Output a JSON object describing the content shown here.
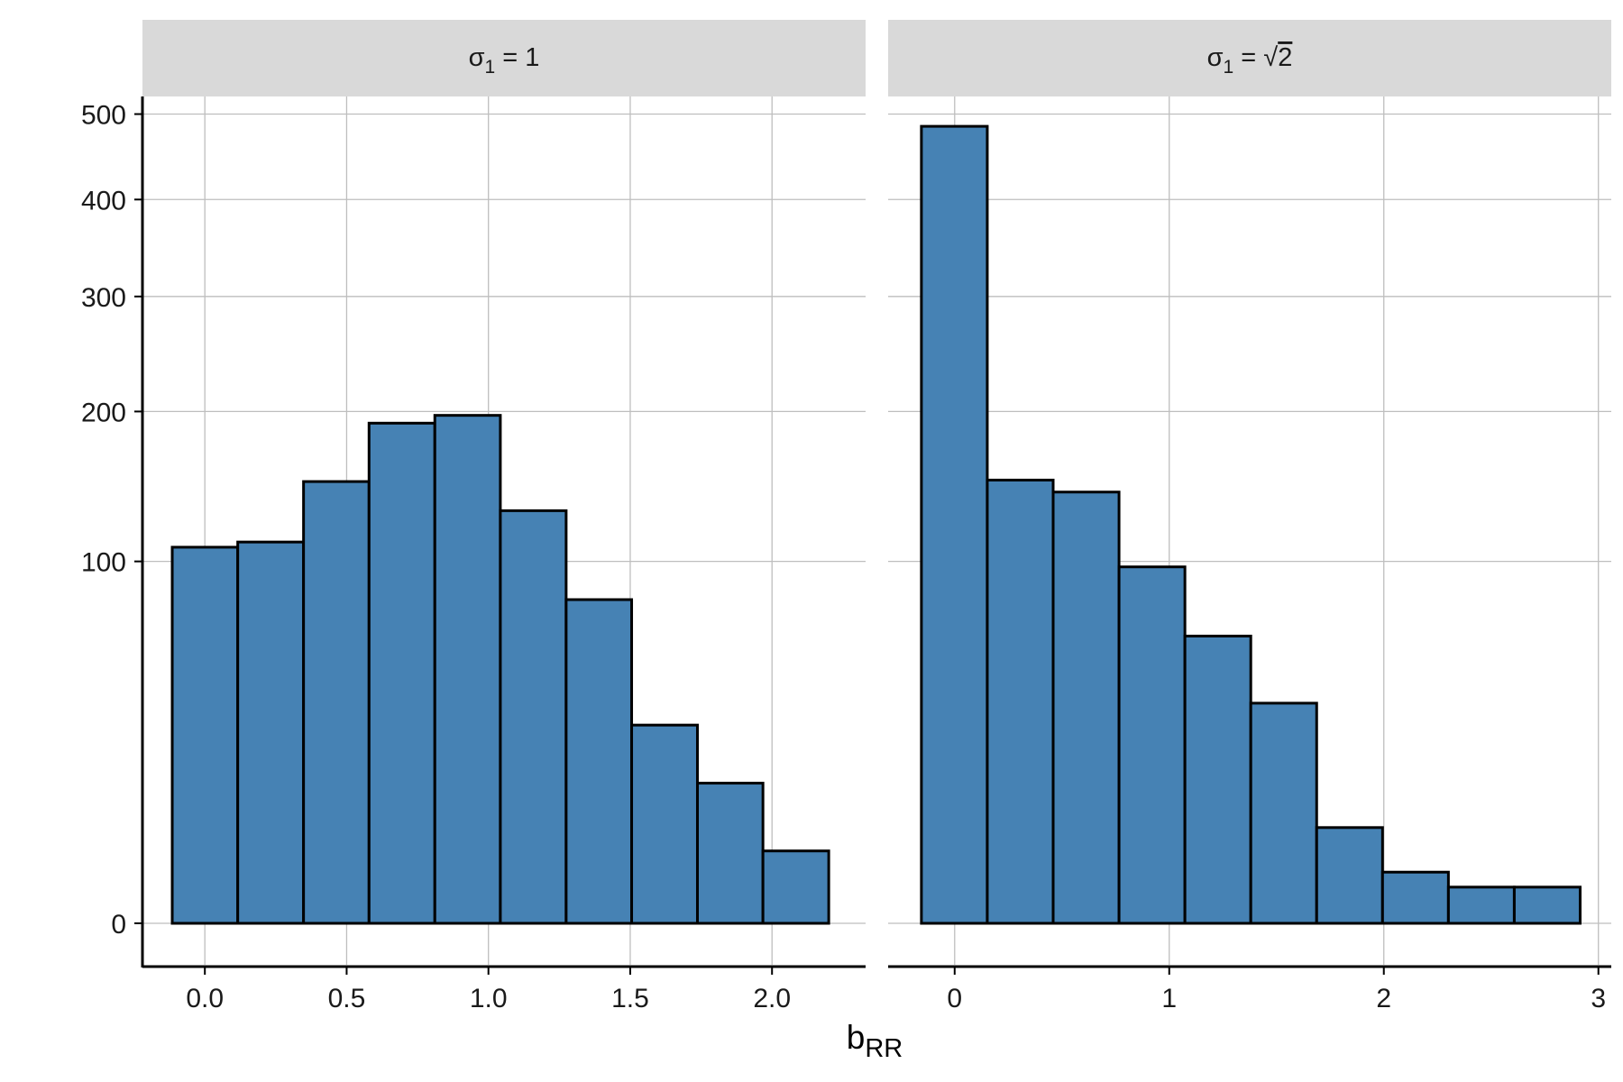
{
  "chart_data": {
    "type": "bar",
    "xlabel": {
      "base": "b",
      "sub": "RR"
    },
    "y_scale": "sqrt",
    "grid": true,
    "panels": [
      {
        "strip": {
          "base": "σ",
          "sub": "1",
          "eq": " = ",
          "value": "1",
          "radical": false
        },
        "xlim": [
          -0.22,
          2.33
        ],
        "ylim": [
          0,
          522
        ],
        "x_ticks": [
          0.0,
          0.5,
          1.0,
          1.5,
          2.0
        ],
        "x_tick_labels": [
          "0.0",
          "0.5",
          "1.0",
          "1.5",
          "2.0"
        ],
        "y_ticks": [
          0,
          100,
          200,
          300,
          400,
          500
        ],
        "y_tick_labels": [
          "0",
          "100",
          "200",
          "300",
          "400",
          "500"
        ],
        "bin_edges": [
          -0.115,
          0.116,
          0.348,
          0.579,
          0.811,
          1.042,
          1.274,
          1.505,
          1.737,
          1.968,
          2.2
        ],
        "counts": [
          108,
          111,
          149,
          191,
          197,
          130,
          80,
          30,
          15,
          4
        ]
      },
      {
        "strip": {
          "base": "σ",
          "sub": "1",
          "eq": " = ",
          "value": "2",
          "radical": true
        },
        "xlim": [
          -0.31,
          3.06
        ],
        "ylim": [
          0,
          522
        ],
        "x_ticks": [
          0,
          1,
          2,
          3
        ],
        "x_tick_labels": [
          "0",
          "1",
          "2",
          "3"
        ],
        "y_ticks": [
          0,
          100,
          200,
          300,
          400,
          500
        ],
        "y_tick_labels": [
          "0",
          "100",
          "200",
          "300",
          "400",
          "500"
        ],
        "bin_edges": [
          -0.155,
          0.152,
          0.459,
          0.766,
          1.073,
          1.38,
          1.687,
          1.994,
          2.301,
          2.608,
          2.915
        ],
        "counts": [
          485,
          150,
          142,
          97,
          63,
          37,
          7,
          2,
          1,
          1
        ]
      }
    ]
  },
  "colors": {
    "bar_fill": "#4682b4",
    "bar_outline": "#000000",
    "strip_bg": "#d9d9d9",
    "grid": "#bebebe"
  }
}
